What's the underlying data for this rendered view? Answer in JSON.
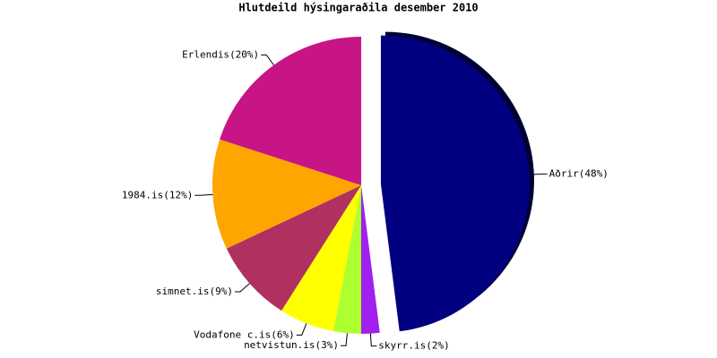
{
  "chart_data": {
    "type": "pie",
    "title": "Hlutdeild hýsingaraðila desember 2010",
    "categories": [
      "Aðrir",
      "skyrr.is",
      "netvistun.is",
      "Vodafone c.is",
      "simnet.is",
      "1984.is",
      "Erlendis"
    ],
    "values": [
      48,
      2,
      3,
      6,
      9,
      12,
      20
    ],
    "value_labels": [
      "(48%)",
      "(2%)",
      "(3%)",
      "(6%)",
      "(9%)",
      "(12%)",
      "(20%)"
    ],
    "colors": [
      "#000080",
      "#a020f0",
      "#adff2f",
      "#ffff00",
      "#b03060",
      "#ffa500",
      "#c71585"
    ],
    "exploded": [
      "Aðrir"
    ]
  }
}
